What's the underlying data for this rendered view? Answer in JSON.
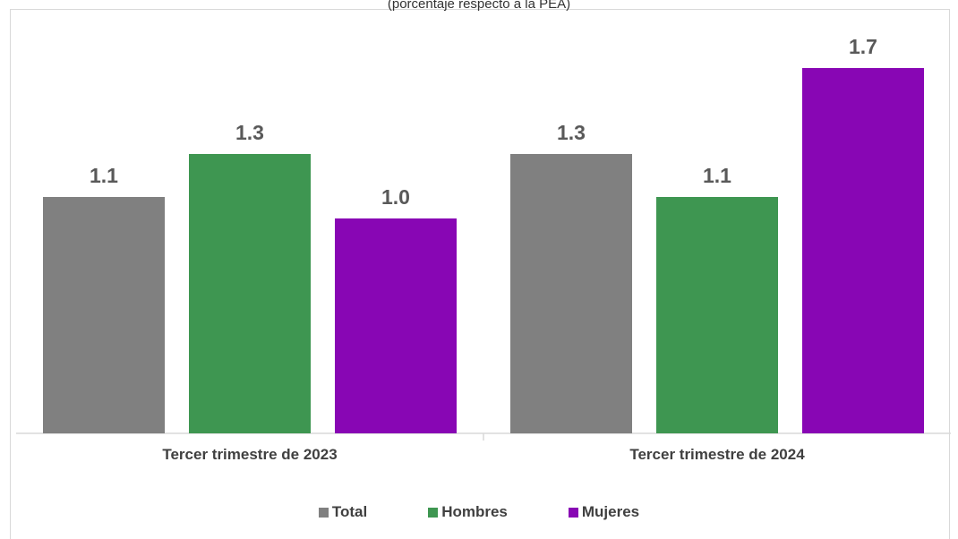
{
  "chart_data": {
    "type": "bar",
    "subtitle": "(porcentaje respecto a la PEA)",
    "categories": [
      "Tercer trimestre de 2023",
      "Tercer trimestre de 2024"
    ],
    "series": [
      {
        "name": "Total",
        "color": "#808080",
        "values": [
          1.1,
          1.3
        ],
        "labels": [
          "1.1",
          "1.3"
        ]
      },
      {
        "name": "Hombres",
        "color": "#3e9651",
        "values": [
          1.3,
          1.1
        ],
        "labels": [
          "1.3",
          "1.1"
        ]
      },
      {
        "name": "Mujeres",
        "color": "#8806b4",
        "values": [
          1.0,
          1.7
        ],
        "labels": [
          "1.0",
          "1.7"
        ]
      }
    ],
    "ylim": [
      0,
      1.9
    ],
    "grid": false,
    "legend_position": "bottom"
  }
}
